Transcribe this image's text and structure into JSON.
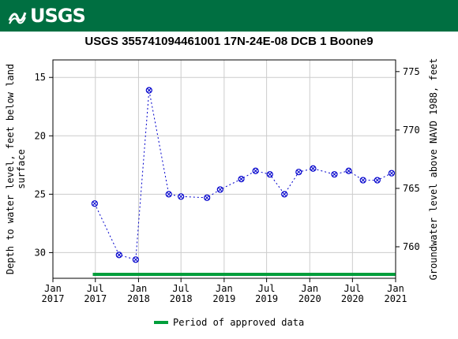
{
  "banner": {
    "logo_text": "USGS",
    "color": "#006f41"
  },
  "chart_data": {
    "type": "scatter",
    "title": "USGS 355741094461001 17N-24E-08 DCB 1 Boone9",
    "ylabel": "Depth to water level, feet below land surface",
    "y2label": "Groundwater level above NAVD 1988, feet",
    "ylim": [
      13.5,
      32.2
    ],
    "y_inverted": true,
    "y_ticks": [
      15,
      20,
      25,
      30
    ],
    "y2lim": [
      776,
      757.3
    ],
    "y2_ticks": [
      775,
      770,
      765,
      760
    ],
    "xlim": [
      "2017-01-01",
      "2021-01-01"
    ],
    "x_ticks": [
      {
        "date": "2017-01-01",
        "label": [
          "Jan",
          "2017"
        ]
      },
      {
        "date": "2017-07-01",
        "label": [
          "Jul",
          "2017"
        ]
      },
      {
        "date": "2018-01-01",
        "label": [
          "Jan",
          "2018"
        ]
      },
      {
        "date": "2018-07-01",
        "label": [
          "Jul",
          "2018"
        ]
      },
      {
        "date": "2019-01-01",
        "label": [
          "Jan",
          "2019"
        ]
      },
      {
        "date": "2019-07-01",
        "label": [
          "Jul",
          "2019"
        ]
      },
      {
        "date": "2020-01-01",
        "label": [
          "Jan",
          "2020"
        ]
      },
      {
        "date": "2020-07-01",
        "label": [
          "Jul",
          "2020"
        ]
      },
      {
        "date": "2021-01-01",
        "label": [
          "Jan",
          "2021"
        ]
      }
    ],
    "grid": true,
    "series": [
      {
        "color": "#0000cc",
        "points": [
          {
            "x": "2017-06-28",
            "y": 25.8
          },
          {
            "x": "2017-10-10",
            "y": 30.2
          },
          {
            "x": "2017-12-20",
            "y": 30.6
          },
          {
            "x": "2018-02-15",
            "y": 16.1
          },
          {
            "x": "2018-05-10",
            "y": 25.0
          },
          {
            "x": "2018-07-01",
            "y": 25.2
          },
          {
            "x": "2018-10-20",
            "y": 25.3
          },
          {
            "x": "2018-12-15",
            "y": 24.6
          },
          {
            "x": "2019-03-15",
            "y": 23.7
          },
          {
            "x": "2019-05-15",
            "y": 23.0
          },
          {
            "x": "2019-07-15",
            "y": 23.3
          },
          {
            "x": "2019-09-15",
            "y": 25.0
          },
          {
            "x": "2019-11-15",
            "y": 23.1
          },
          {
            "x": "2020-01-15",
            "y": 22.8
          },
          {
            "x": "2020-04-15",
            "y": 23.3
          },
          {
            "x": "2020-06-15",
            "y": 23.0
          },
          {
            "x": "2020-08-15",
            "y": 23.8
          },
          {
            "x": "2020-10-15",
            "y": 23.8
          },
          {
            "x": "2020-12-15",
            "y": 23.2
          }
        ]
      }
    ],
    "approved_period": {
      "start": "2017-06-20",
      "end": "2020-12-31",
      "color": "#009e3b"
    },
    "legend": {
      "label": "Period of approved data",
      "placement": "bottom-center"
    }
  }
}
